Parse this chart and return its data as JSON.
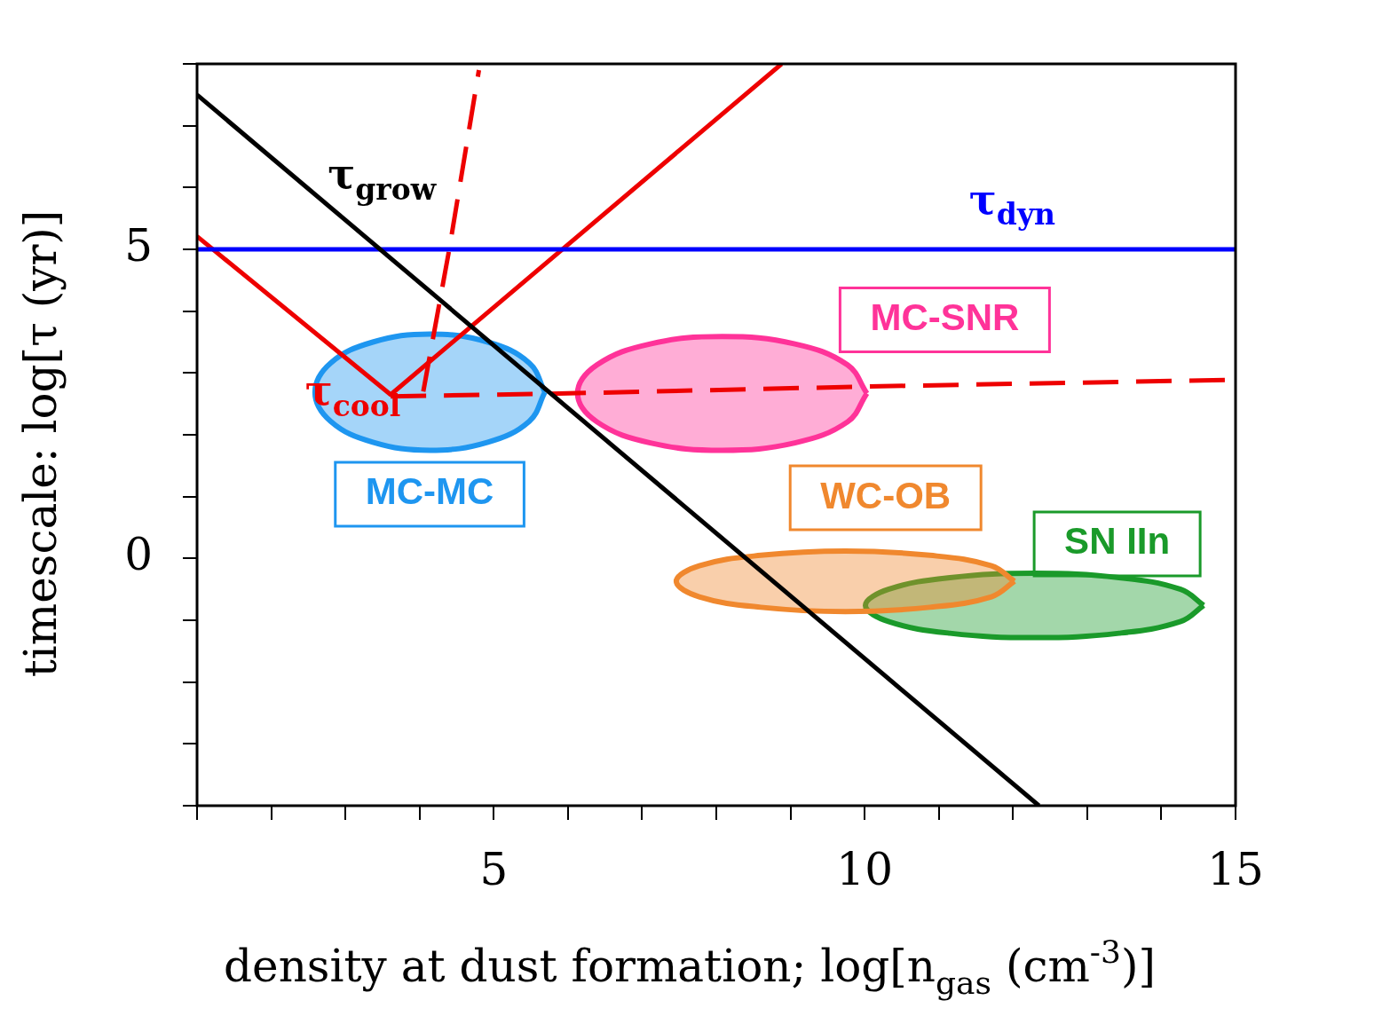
{
  "chart_data": {
    "type": "line",
    "xlabel": "density at dust formation; log[n$_{gas}$ (cm$^{-3}$)]",
    "ylabel": "timescale: log[τ (yr)]",
    "xlim": [
      1,
      15
    ],
    "ylim": [
      -4,
      8
    ],
    "xticks": [
      {
        "value": 1,
        "label": null
      },
      {
        "value": 2,
        "label": null
      },
      {
        "value": 3,
        "label": null
      },
      {
        "value": 4,
        "label": null
      },
      5,
      {
        "value": 6,
        "label": null
      },
      {
        "value": 7,
        "label": null
      },
      {
        "value": 8,
        "label": null
      },
      {
        "value": 9,
        "label": null
      },
      10,
      {
        "value": 11,
        "label": null
      },
      {
        "value": 12,
        "label": null
      },
      {
        "value": 13,
        "label": null
      },
      {
        "value": 14,
        "label": null
      },
      15
    ],
    "yticks": [
      {
        "value": -4,
        "label": null
      },
      {
        "value": -3,
        "label": null
      },
      {
        "value": -2,
        "label": null
      },
      {
        "value": -1,
        "label": null
      },
      0,
      {
        "value": 1,
        "label": null
      },
      {
        "value": 2,
        "label": null
      },
      {
        "value": 3,
        "label": null
      },
      {
        "value": 4,
        "label": null
      },
      5,
      {
        "value": 6,
        "label": null
      },
      {
        "value": 7,
        "label": null
      },
      {
        "value": 8,
        "label": null
      }
    ],
    "grid": false,
    "legend": false,
    "series": [
      {
        "name": "τ$_{grow}$",
        "color": "#000000",
        "x": [
          1,
          12.35
        ],
        "values": [
          7.5,
          -4
        ]
      },
      {
        "name": "τ$_{dyn}$",
        "color": "#0000ff",
        "x": [
          1,
          15
        ],
        "values": [
          5,
          5
        ]
      },
      {
        "name": "τ$_{cool}$",
        "color": "#ee0000",
        "x": [
          1,
          3.61,
          8.88
        ],
        "values": [
          5.21,
          2.65,
          8
        ]
      },
      {
        "name": "MC-MC",
        "type": "area",
        "color": "#1e96f0",
        "x": [
          5.69,
          5.48,
          4.92,
          4.14,
          3.37,
          2.8,
          2.59,
          2.8,
          3.37,
          4.14,
          4.92,
          5.48,
          5.69
        ],
        "values": [
          2.69,
          3.16,
          3.5,
          3.63,
          3.5,
          3.16,
          2.69,
          2.22,
          1.88,
          1.75,
          1.88,
          2.22,
          2.69
        ]
      },
      {
        "name": "MC-SNR",
        "type": "area",
        "color": "#ff3399",
        "x": [
          10.03,
          9.77,
          9.06,
          8.08,
          7.11,
          6.39,
          6.13,
          6.39,
          7.11,
          8.08,
          9.06,
          9.77,
          10.03
        ],
        "values": [
          2.67,
          3.13,
          3.47,
          3.59,
          3.47,
          3.13,
          2.67,
          2.21,
          1.87,
          1.75,
          1.87,
          2.21,
          2.67
        ]
      },
      {
        "name": "WC-OB",
        "type": "area",
        "color": "#f0882e",
        "x": [
          12.02,
          11.71,
          10.88,
          9.74,
          8.6,
          7.77,
          7.46,
          7.77,
          8.6,
          9.74,
          10.88,
          11.71,
          12.02
        ],
        "values": [
          -0.37,
          -0.12,
          0.05,
          0.12,
          0.05,
          -0.12,
          -0.37,
          -0.62,
          -0.79,
          -0.86,
          -0.79,
          -0.62,
          -0.37
        ]
      },
      {
        "name": "SN IIn",
        "type": "area",
        "color": "#1a9a2a",
        "x": [
          14.57,
          14.26,
          13.43,
          12.29,
          11.15,
          10.32,
          10.01,
          10.32,
          11.15,
          12.29,
          13.43,
          14.26,
          14.57
        ],
        "values": [
          -0.76,
          -0.5,
          -0.31,
          -0.24,
          -0.31,
          -0.5,
          -0.76,
          -1.02,
          -1.21,
          -1.28,
          -1.21,
          -1.02,
          -0.76
        ]
      },
      {
        "color": "#ee0000",
        "line_style": "dashed",
        "x": [
          3.61,
          6,
          10,
          15
        ],
        "values": [
          2.62,
          2.67,
          2.78,
          2.89
        ]
      },
      {
        "color": "#ee0000",
        "line_style": "dashed",
        "x": [
          4.05,
          4.4,
          4.8
        ],
        "values": [
          2.7,
          5,
          7.9
        ]
      }
    ]
  }
}
